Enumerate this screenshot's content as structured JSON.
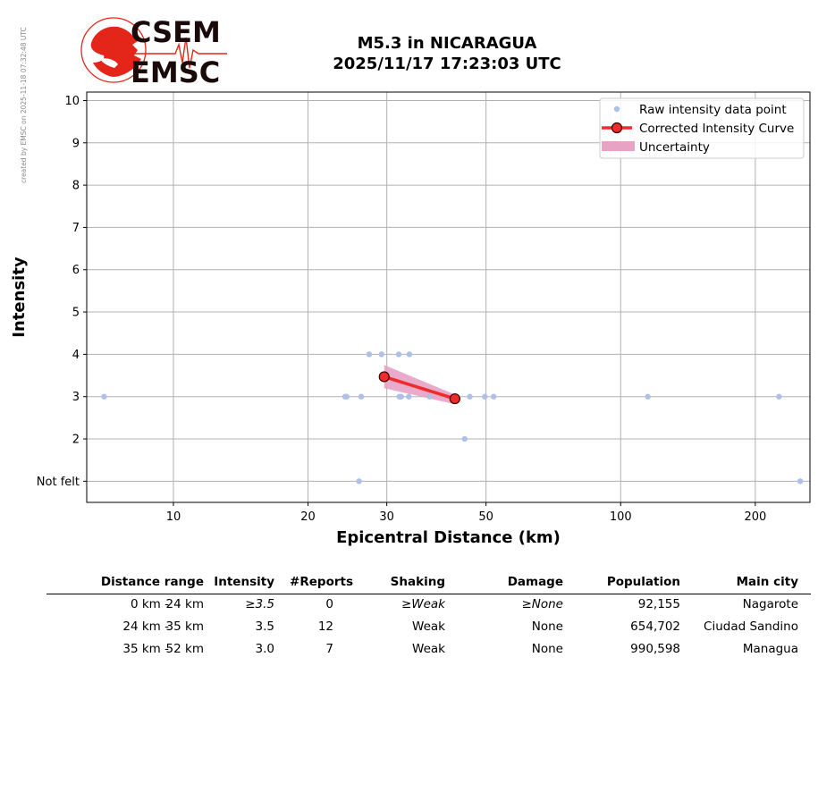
{
  "watermark": "created by EMSC on 2025-11-18 07:32:48 UTC",
  "logo": {
    "top": "CSEM",
    "bottom": "EMSC"
  },
  "title": {
    "line1": "M5.3 in NICARAGUA",
    "line2": "2025/11/17 17:23:03 UTC"
  },
  "colors": {
    "raw": "#aec0e8",
    "curve": "#ee2c2c",
    "uncertainty": "#e8a2c4",
    "grid": "#b0b0b0",
    "logo_red": "#e32619"
  },
  "chart_data": {
    "type": "scatter",
    "title": "",
    "xlabel": "Epicentral Distance (km)",
    "ylabel": "Intensity",
    "xscale": "log",
    "xlim": [
      6.4,
      265
    ],
    "ylim": [
      0.5,
      10.2
    ],
    "xticks": [
      10,
      20,
      30,
      50,
      100,
      200
    ],
    "xtick_labels": [
      "10",
      "20",
      "30",
      "50",
      "100",
      "200"
    ],
    "yticks": [
      1,
      2,
      3,
      4,
      5,
      6,
      7,
      8,
      9,
      10
    ],
    "ytick_labels": [
      "Not felt",
      "2",
      "3",
      "4",
      "5",
      "6",
      "7",
      "8",
      "9",
      "10"
    ],
    "grid": true,
    "legend_position": "top-right",
    "series": [
      {
        "name": "Raw intensity data point",
        "kind": "scatter",
        "points": [
          [
            7,
            3
          ],
          [
            24.2,
            3
          ],
          [
            24.4,
            3
          ],
          [
            26.3,
            3
          ],
          [
            26,
            1
          ],
          [
            27.4,
            4
          ],
          [
            29.2,
            4
          ],
          [
            31.9,
            4
          ],
          [
            33.7,
            4
          ],
          [
            32,
            3
          ],
          [
            32.3,
            3
          ],
          [
            33.6,
            3
          ],
          [
            37.4,
            3
          ],
          [
            44.8,
            2
          ],
          [
            46,
            3
          ],
          [
            49.7,
            3
          ],
          [
            52,
            3
          ],
          [
            115,
            3
          ],
          [
            226,
            3
          ],
          [
            252,
            1
          ]
        ]
      },
      {
        "name": "Corrected Intensity Curve",
        "kind": "line",
        "points": [
          [
            29.6,
            3.47
          ],
          [
            42.6,
            2.95
          ]
        ]
      },
      {
        "name": "Uncertainty",
        "kind": "band",
        "upper": [
          [
            29.6,
            3.75
          ],
          [
            42.6,
            3.05
          ]
        ],
        "lower": [
          [
            29.6,
            3.2
          ],
          [
            42.6,
            2.82
          ]
        ]
      }
    ]
  },
  "table": {
    "headers": [
      "Distance range",
      "Intensity",
      "#Reports",
      "Shaking",
      "Damage",
      "Population",
      "Main city"
    ],
    "rows": [
      {
        "from": "0 km -",
        "to": "24 km",
        "intensity": "≥3.5",
        "reports": "0",
        "shaking": "≥Weak",
        "damage": "≥None",
        "population": "92,155",
        "city": "Nagarote",
        "italic": true
      },
      {
        "from": "24 km -",
        "to": "35 km",
        "intensity": "3.5",
        "reports": "12",
        "shaking": "Weak",
        "damage": "None",
        "population": "654,702",
        "city": "Ciudad Sandino",
        "italic": false
      },
      {
        "from": "35 km -",
        "to": "52 km",
        "intensity": "3.0",
        "reports": "7",
        "shaking": "Weak",
        "damage": "None",
        "population": "990,598",
        "city": "Managua",
        "italic": false
      }
    ]
  }
}
